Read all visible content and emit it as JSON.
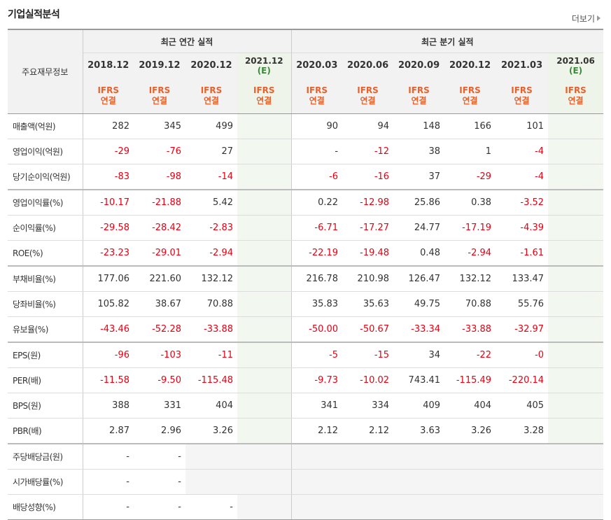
{
  "title": "기업실적분석",
  "more_label": "더보기",
  "header": {
    "row_label": "주요재무정보",
    "annual_group": "최근 연간 실적",
    "quarter_group": "최근 분기 실적",
    "annual_periods": [
      "2018.12",
      "2019.12",
      "2020.12",
      "2021.12"
    ],
    "annual_est": [
      false,
      false,
      false,
      true
    ],
    "quarter_periods": [
      "2020.03",
      "2020.06",
      "2020.09",
      "2020.12",
      "2021.03",
      "2021.06"
    ],
    "quarter_est": [
      false,
      false,
      false,
      false,
      false,
      true
    ],
    "est_suffix": "(E)",
    "ifrs_top": "IFRS",
    "ifrs_bottom": "연결"
  },
  "rows": [
    {
      "label": "매출액(억원)",
      "section_start": false,
      "values": [
        "282",
        "345",
        "499",
        "",
        "90",
        "94",
        "148",
        "166",
        "101",
        ""
      ]
    },
    {
      "label": "영업이익(억원)",
      "section_start": false,
      "values": [
        "-29",
        "-76",
        "27",
        "",
        "-",
        "-12",
        "38",
        "1",
        "-4",
        ""
      ]
    },
    {
      "label": "당기순이익(억원)",
      "section_start": false,
      "values": [
        "-83",
        "-98",
        "-14",
        "",
        "-6",
        "-16",
        "37",
        "-29",
        "-4",
        ""
      ]
    },
    {
      "label": "영업이익률(%)",
      "section_start": true,
      "values": [
        "-10.17",
        "-21.88",
        "5.42",
        "",
        "0.22",
        "-12.98",
        "25.86",
        "0.38",
        "-3.52",
        ""
      ]
    },
    {
      "label": "순이익률(%)",
      "section_start": false,
      "values": [
        "-29.58",
        "-28.42",
        "-2.83",
        "",
        "-6.71",
        "-17.27",
        "24.77",
        "-17.19",
        "-4.39",
        ""
      ]
    },
    {
      "label": "ROE(%)",
      "section_start": false,
      "values": [
        "-23.23",
        "-29.01",
        "-2.94",
        "",
        "-22.19",
        "-19.48",
        "0.48",
        "-2.94",
        "-1.61",
        ""
      ]
    },
    {
      "label": "부채비율(%)",
      "section_start": true,
      "values": [
        "177.06",
        "221.60",
        "132.12",
        "",
        "216.78",
        "210.98",
        "126.47",
        "132.12",
        "133.47",
        ""
      ]
    },
    {
      "label": "당좌비율(%)",
      "section_start": false,
      "values": [
        "105.82",
        "38.67",
        "70.88",
        "",
        "35.83",
        "35.63",
        "49.75",
        "70.88",
        "55.76",
        ""
      ]
    },
    {
      "label": "유보율(%)",
      "section_start": false,
      "values": [
        "-43.46",
        "-52.28",
        "-33.88",
        "",
        "-50.00",
        "-50.67",
        "-33.34",
        "-33.88",
        "-32.97",
        ""
      ]
    },
    {
      "label": "EPS(원)",
      "section_start": true,
      "values": [
        "-96",
        "-103",
        "-11",
        "",
        "-5",
        "-15",
        "34",
        "-22",
        "-0",
        ""
      ]
    },
    {
      "label": "PER(배)",
      "section_start": false,
      "values": [
        "-11.58",
        "-9.50",
        "-115.48",
        "",
        "-9.73",
        "-10.02",
        "743.41",
        "-115.49",
        "-220.14",
        ""
      ]
    },
    {
      "label": "BPS(원)",
      "section_start": false,
      "values": [
        "388",
        "331",
        "404",
        "",
        "341",
        "334",
        "409",
        "404",
        "405",
        ""
      ]
    },
    {
      "label": "PBR(배)",
      "section_start": false,
      "values": [
        "2.87",
        "2.96",
        "3.26",
        "",
        "2.12",
        "2.12",
        "3.63",
        "3.26",
        "3.28",
        ""
      ]
    },
    {
      "label": "주당배당금(원)",
      "section_start": true,
      "blank_from": 2,
      "values": [
        "-",
        "-",
        "",
        "",
        "",
        "",
        "",
        "",
        "",
        ""
      ]
    },
    {
      "label": "시가배당률(%)",
      "section_start": false,
      "blank_from": 2,
      "values": [
        "-",
        "-",
        "",
        "",
        "",
        "",
        "",
        "",
        "",
        ""
      ]
    },
    {
      "label": "배당성향(%)",
      "section_start": false,
      "blank_from": 3,
      "values": [
        "-",
        "-",
        "-",
        "",
        "",
        "",
        "",
        "",
        "",
        ""
      ]
    }
  ]
}
